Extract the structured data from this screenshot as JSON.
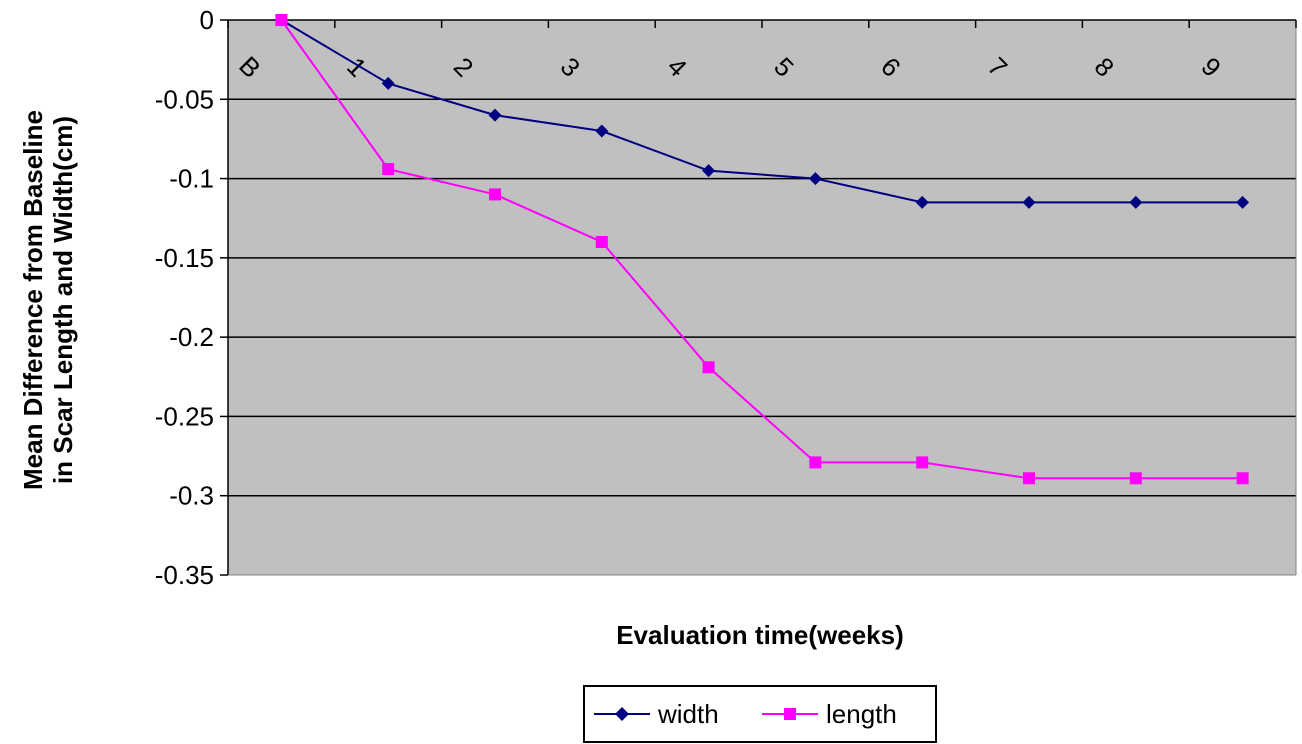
{
  "chart_data": {
    "type": "line",
    "categories": [
      "B",
      "1",
      "2",
      "3",
      "4",
      "5",
      "6",
      "7",
      "8",
      "9"
    ],
    "series": [
      {
        "name": "width",
        "color": "#000080",
        "marker": "diamond",
        "values": [
          0,
          -0.04,
          -0.06,
          -0.07,
          -0.095,
          -0.1,
          -0.115,
          -0.115,
          -0.115,
          -0.115
        ]
      },
      {
        "name": "length",
        "color": "#ff00ff",
        "marker": "square",
        "values": [
          0,
          -0.094,
          -0.11,
          -0.14,
          -0.219,
          -0.279,
          -0.279,
          -0.289,
          -0.289,
          -0.289
        ]
      }
    ],
    "xlabel": "Evaluation time(weeks)",
    "ylabel_lines": [
      "Mean Difference from Baseline",
      "in Scar Length and Width(cm)"
    ],
    "ylim": [
      -0.35,
      0
    ],
    "yticks": [
      0,
      -0.05,
      -0.1,
      -0.15,
      -0.2,
      -0.25,
      -0.3,
      -0.35
    ],
    "ytick_labels": [
      "0",
      "-0.05",
      "-0.1",
      "-0.15",
      "-0.2",
      "-0.25",
      "-0.3",
      "-0.35"
    ],
    "x_axis_position": "top",
    "category_label_rotation": "diagonal",
    "grid": "horizontal",
    "plot_background": "#c0c0c0",
    "legend_position": "bottom"
  }
}
